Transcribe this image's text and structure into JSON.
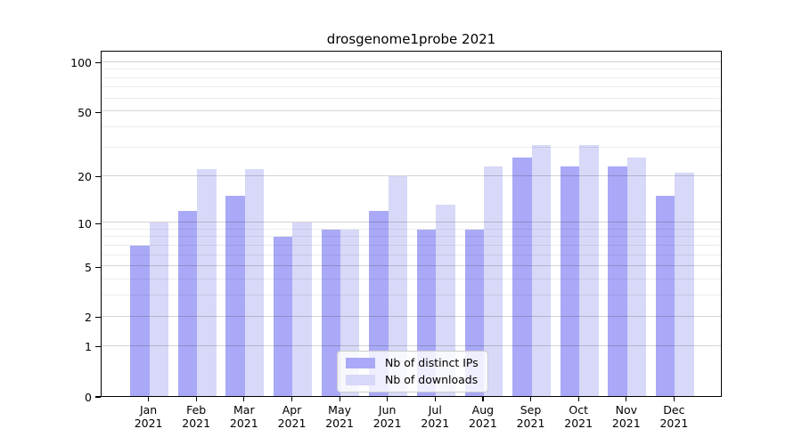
{
  "title": "drosgenome1probe 2021",
  "chart_data": {
    "type": "bar",
    "title": "drosgenome1probe 2021",
    "categories": [
      "Jan",
      "Feb",
      "Mar",
      "Apr",
      "May",
      "Jun",
      "Jul",
      "Aug",
      "Sep",
      "Oct",
      "Nov",
      "Dec"
    ],
    "year_label": "2021",
    "series": [
      {
        "name": "Nb of distinct IPs",
        "color": "#a9a9f7",
        "values": [
          7,
          12,
          15,
          8,
          9,
          12,
          9,
          9,
          26,
          23,
          23,
          15
        ]
      },
      {
        "name": "Nb of downloads",
        "color": "#d8d8f8",
        "values": [
          10,
          22,
          22,
          10,
          9,
          20,
          13,
          23,
          31,
          31,
          26,
          21
        ]
      }
    ],
    "xlabel": "",
    "ylabel": "",
    "yscale": "log1p",
    "ylim": [
      0,
      120
    ],
    "yticks": [
      0,
      1,
      2,
      5,
      10,
      20,
      50,
      100
    ],
    "yticks_minor": [
      3,
      4,
      6,
      7,
      8,
      9,
      30,
      40,
      60,
      70,
      80,
      90
    ],
    "grid": true,
    "legend_position": "lower center"
  },
  "colors": {
    "background": "#ffffff",
    "axis": "#000000",
    "grid_major": "rgba(0,0,0,0.17)",
    "grid_minor": "rgba(0,0,0,0.075)",
    "legend_border": "#cccccc",
    "legend_background": "rgba(255,255,255,0.8)"
  }
}
